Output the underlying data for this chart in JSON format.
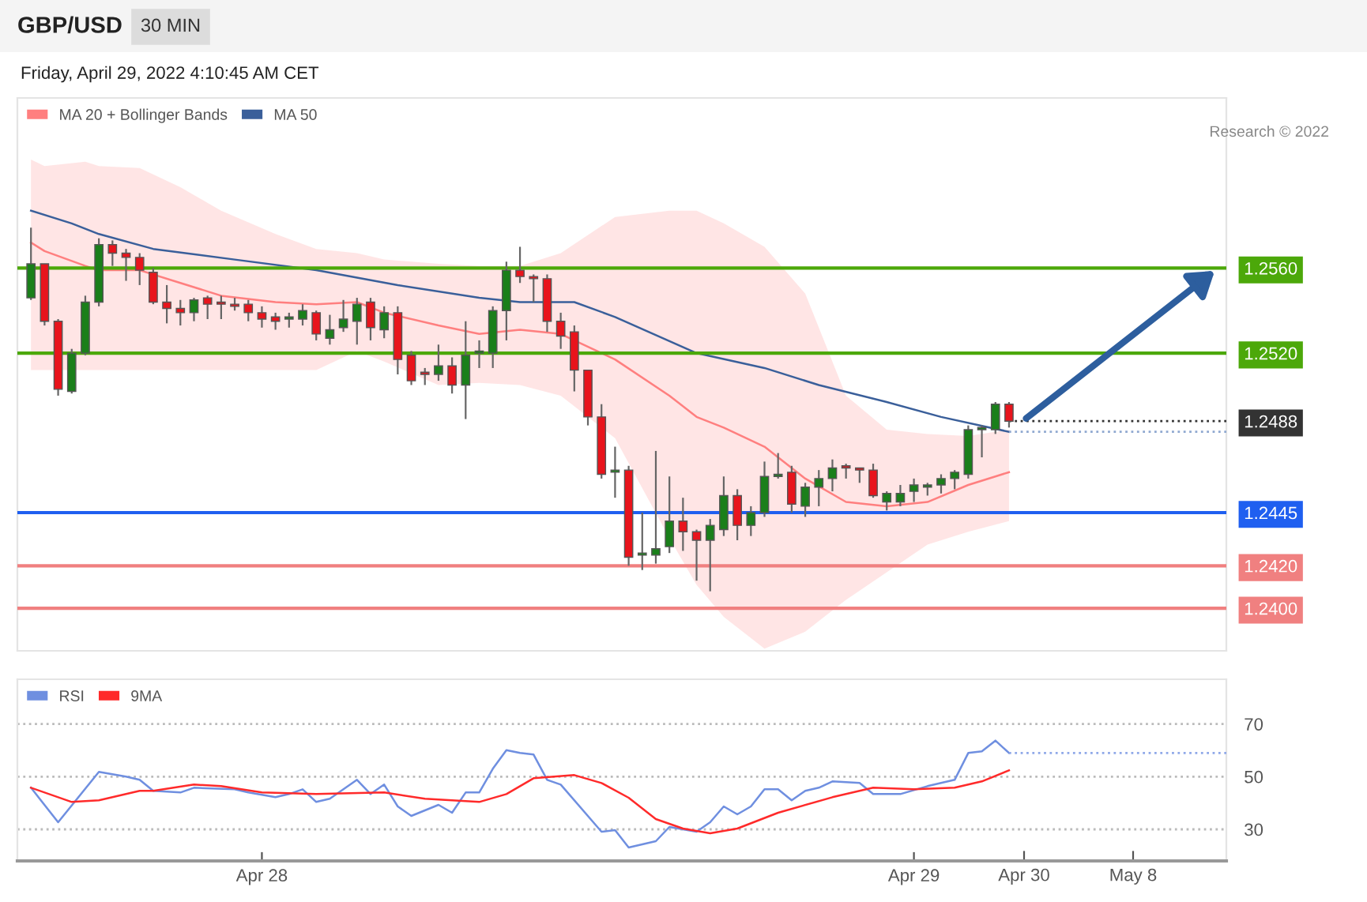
{
  "chart_data": [
    {
      "type": "candlestick",
      "title": "GBP/USD",
      "subtitle": "30 MIN",
      "annotations": [
        "Friday, April 29, 2022 4:10:45 AM CET",
        "Research © 2022"
      ],
      "x": [
        "2022-04-27T15:30",
        "2022-04-27T16:00",
        "2022-04-27T16:30",
        "2022-04-27T17:00",
        "2022-04-27T17:30",
        "2022-04-27T18:00",
        "2022-04-27T18:30",
        "2022-04-27T19:00",
        "2022-04-27T19:30",
        "2022-04-27T20:00",
        "2022-04-27T20:30",
        "2022-04-27T21:00",
        "2022-04-27T21:30",
        "2022-04-27T22:00",
        "2022-04-27T22:30",
        "2022-04-27T23:00",
        "2022-04-27T23:30",
        "2022-04-28T00:00",
        "2022-04-28T00:30",
        "2022-04-28T01:00",
        "2022-04-28T01:30",
        "2022-04-28T02:00",
        "2022-04-28T02:30",
        "2022-04-28T03:00",
        "2022-04-28T03:30",
        "2022-04-28T04:00",
        "2022-04-28T04:30",
        "2022-04-28T05:00",
        "2022-04-28T05:30",
        "2022-04-28T06:00",
        "2022-04-28T06:30",
        "2022-04-28T07:00",
        "2022-04-28T07:30",
        "2022-04-28T08:00",
        "2022-04-28T08:30",
        "2022-04-28T09:00",
        "2022-04-28T09:30",
        "2022-04-28T10:00",
        "2022-04-28T10:30",
        "2022-04-28T11:00",
        "2022-04-28T11:30",
        "2022-04-28T12:00",
        "2022-04-28T12:30",
        "2022-04-28T13:00",
        "2022-04-28T13:30",
        "2022-04-28T14:00",
        "2022-04-28T14:30",
        "2022-04-28T15:00",
        "2022-04-28T15:30",
        "2022-04-28T16:00",
        "2022-04-28T16:30",
        "2022-04-28T17:00",
        "2022-04-28T17:30",
        "2022-04-28T18:00",
        "2022-04-28T18:30",
        "2022-04-28T19:00",
        "2022-04-28T19:30",
        "2022-04-28T20:00",
        "2022-04-28T20:30",
        "2022-04-28T21:00",
        "2022-04-28T21:30",
        "2022-04-28T22:00",
        "2022-04-28T22:30",
        "2022-04-28T23:00",
        "2022-04-28T23:30",
        "2022-04-29T00:00",
        "2022-04-29T00:30",
        "2022-04-29T01:00",
        "2022-04-29T01:30",
        "2022-04-29T02:00",
        "2022-04-29T02:30",
        "2022-04-29T03:00",
        "2022-04-29T03:30"
      ],
      "ohlc": [
        [
          1.2546,
          1.2579,
          1.2545,
          1.2562
        ],
        [
          1.2562,
          1.2562,
          1.2533,
          1.2535
        ],
        [
          1.2535,
          1.2536,
          1.25,
          1.2503
        ],
        [
          1.2502,
          1.2522,
          1.2501,
          1.252
        ],
        [
          1.252,
          1.2547,
          1.2519,
          1.2544
        ],
        [
          1.2544,
          1.2574,
          1.2542,
          1.2571
        ],
        [
          1.2571,
          1.2573,
          1.2561,
          1.2567
        ],
        [
          1.2567,
          1.2569,
          1.2554,
          1.2565
        ],
        [
          1.2565,
          1.2567,
          1.2552,
          1.2559
        ],
        [
          1.2558,
          1.256,
          1.2543,
          1.2544
        ],
        [
          1.2544,
          1.2552,
          1.2534,
          1.2541
        ],
        [
          1.2541,
          1.2545,
          1.2533,
          1.2539
        ],
        [
          1.2539,
          1.2546,
          1.2535,
          1.2545
        ],
        [
          1.2546,
          1.2547,
          1.2536,
          1.2543
        ],
        [
          1.2544,
          1.2547,
          1.2536,
          1.2543
        ],
        [
          1.2543,
          1.2546,
          1.254,
          1.2542
        ],
        [
          1.2543,
          1.2545,
          1.2535,
          1.2539
        ],
        [
          1.2539,
          1.2542,
          1.2532,
          1.2536
        ],
        [
          1.2537,
          1.2539,
          1.2531,
          1.2535
        ],
        [
          1.2536,
          1.2539,
          1.2532,
          1.2537
        ],
        [
          1.2536,
          1.2543,
          1.2533,
          1.254
        ],
        [
          1.2539,
          1.254,
          1.2526,
          1.2529
        ],
        [
          1.2527,
          1.2538,
          1.2524,
          1.2531
        ],
        [
          1.2532,
          1.2545,
          1.253,
          1.2536
        ],
        [
          1.2535,
          1.2546,
          1.2524,
          1.2543
        ],
        [
          1.2544,
          1.2546,
          1.2526,
          1.2532
        ],
        [
          1.2531,
          1.2542,
          1.2527,
          1.2539
        ],
        [
          1.2539,
          1.2542,
          1.251,
          1.2517
        ],
        [
          1.2519,
          1.2521,
          1.2505,
          1.2507
        ],
        [
          1.2511,
          1.2513,
          1.2505,
          1.251
        ],
        [
          1.251,
          1.2524,
          1.2507,
          1.2514
        ],
        [
          1.2514,
          1.2518,
          1.2501,
          1.2505
        ],
        [
          1.2505,
          1.2535,
          1.2489,
          1.2519
        ],
        [
          1.252,
          1.2526,
          1.2513,
          1.2521
        ],
        [
          1.252,
          1.2542,
          1.2513,
          1.254
        ],
        [
          1.254,
          1.2563,
          1.2526,
          1.2559
        ],
        [
          1.2559,
          1.257,
          1.2553,
          1.2556
        ],
        [
          1.2556,
          1.2557,
          1.2544,
          1.2555
        ],
        [
          1.2555,
          1.2557,
          1.253,
          1.2535
        ],
        [
          1.2535,
          1.2539,
          1.2522,
          1.2528
        ],
        [
          1.253,
          1.2533,
          1.2502,
          1.2512
        ],
        [
          1.2512,
          1.2512,
          1.2486,
          1.249
        ],
        [
          1.249,
          1.2496,
          1.2461,
          1.2463
        ],
        [
          1.2464,
          1.2476,
          1.2452,
          1.2465
        ],
        [
          1.2465,
          1.2467,
          1.242,
          1.2424
        ],
        [
          1.2425,
          1.2445,
          1.2418,
          1.2426
        ],
        [
          1.2425,
          1.2474,
          1.2421,
          1.2428
        ],
        [
          1.2429,
          1.2462,
          1.2426,
          1.2441
        ],
        [
          1.2441,
          1.2452,
          1.2427,
          1.2436
        ],
        [
          1.2436,
          1.2437,
          1.2413,
          1.2432
        ],
        [
          1.2432,
          1.2442,
          1.2408,
          1.2439
        ],
        [
          1.2437,
          1.2462,
          1.2434,
          1.2453
        ],
        [
          1.2453,
          1.2456,
          1.2432,
          1.2439
        ],
        [
          1.2439,
          1.2448,
          1.2434,
          1.2445
        ],
        [
          1.2445,
          1.2469,
          1.2443,
          1.2462
        ],
        [
          1.2462,
          1.2473,
          1.2461,
          1.2463
        ],
        [
          1.2464,
          1.2467,
          1.2445,
          1.2449
        ],
        [
          1.2448,
          1.2459,
          1.2443,
          1.2457
        ],
        [
          1.2457,
          1.2465,
          1.2448,
          1.2461
        ],
        [
          1.2461,
          1.247,
          1.2455,
          1.2466
        ],
        [
          1.2467,
          1.2468,
          1.2461,
          1.2466
        ],
        [
          1.2466,
          1.2466,
          1.2459,
          1.2465
        ],
        [
          1.2465,
          1.2468,
          1.2452,
          1.2453
        ],
        [
          1.245,
          1.2455,
          1.2446,
          1.2454
        ],
        [
          1.245,
          1.2458,
          1.2448,
          1.2454
        ],
        [
          1.2455,
          1.2461,
          1.245,
          1.2458
        ],
        [
          1.2457,
          1.2459,
          1.2453,
          1.2458
        ],
        [
          1.2458,
          1.2463,
          1.2454,
          1.2461
        ],
        [
          1.2461,
          1.2465,
          1.2456,
          1.2464
        ],
        [
          1.2463,
          1.2486,
          1.2461,
          1.2484
        ],
        [
          1.2484,
          1.2486,
          1.2471,
          1.2485
        ],
        [
          1.2484,
          1.2497,
          1.2482,
          1.2496
        ],
        [
          1.2496,
          1.2497,
          1.2485,
          1.2488
        ]
      ],
      "colors": [
        "#1a7f1a",
        "#e8141c",
        "#e8141c",
        "#1a7f1a",
        "#1a7f1a",
        "#1a7f1a",
        "#e8141c",
        "#e8141c",
        "#e8141c",
        "#e8141c",
        "#e8141c",
        "#e8141c",
        "#1a7f1a",
        "#e8141c",
        "#e8141c",
        "#e8141c",
        "#e8141c",
        "#e8141c",
        "#e8141c",
        "#1a7f1a",
        "#1a7f1a",
        "#e8141c",
        "#1a7f1a",
        "#1a7f1a",
        "#1a7f1a",
        "#e8141c",
        "#1a7f1a",
        "#e8141c",
        "#e8141c",
        "#e8141c",
        "#1a7f1a",
        "#e8141c",
        "#1a7f1a",
        "#1a7f1a",
        "#1a7f1a",
        "#1a7f1a",
        "#e8141c",
        "#e8141c",
        "#e8141c",
        "#e8141c",
        "#e8141c",
        "#e8141c",
        "#e8141c",
        "#1a7f1a",
        "#e8141c",
        "#1a7f1a",
        "#1a7f1a",
        "#1a7f1a",
        "#e8141c",
        "#e8141c",
        "#1a7f1a",
        "#1a7f1a",
        "#e8141c",
        "#1a7f1a",
        "#1a7f1a",
        "#1a7f1a",
        "#e8141c",
        "#1a7f1a",
        "#1a7f1a",
        "#1a7f1a",
        "#e8141c",
        "#e8141c",
        "#e8141c",
        "#1a7f1a",
        "#1a7f1a",
        "#1a7f1a",
        "#1a7f1a",
        "#1a7f1a",
        "#1a7f1a",
        "#1a7f1a",
        "#1a7f1a",
        "#1a7f1a",
        "#e8141c"
      ],
      "series": [
        {
          "name": "MA 20 + Bollinger Bands",
          "type": "line",
          "color": "#ff7f7f",
          "x": [
            "2022-04-27T15:30",
            "2022-04-27T16:00",
            "2022-04-27T17:30",
            "2022-04-27T18:00",
            "2022-04-27T19:30",
            "2022-04-27T21:00",
            "2022-04-27T22:30",
            "2022-04-28T00:30",
            "2022-04-28T02:00",
            "2022-04-28T03:30",
            "2022-04-28T04:30",
            "2022-04-28T06:30",
            "2022-04-28T08:00",
            "2022-04-28T09:30",
            "2022-04-28T11:00",
            "2022-04-28T13:00",
            "2022-04-28T15:00",
            "2022-04-28T16:00",
            "2022-04-28T17:00",
            "2022-04-28T18:30",
            "2022-04-28T20:00",
            "2022-04-28T21:30",
            "2022-04-28T23:00",
            "2022-04-29T00:30",
            "2022-04-29T02:00",
            "2022-04-29T03:30"
          ],
          "values": [
            1.2572,
            1.2568,
            1.2561,
            1.2559,
            1.2559,
            1.2553,
            1.2547,
            1.2544,
            1.2543,
            1.2544,
            1.2539,
            1.2533,
            1.2529,
            1.2531,
            1.2529,
            1.2517,
            1.25,
            1.249,
            1.2485,
            1.2476,
            1.2461,
            1.245,
            1.2448,
            1.245,
            1.2458,
            1.2464
          ],
          "upper": [
            1.2611,
            1.2608,
            1.261,
            1.2608,
            1.2607,
            1.2598,
            1.2587,
            1.2576,
            1.2569,
            1.2567,
            1.2564,
            1.2562,
            1.2561,
            1.2561,
            1.2567,
            1.2584,
            1.2587,
            1.2587,
            1.2581,
            1.257,
            1.2548,
            1.25,
            1.2484,
            1.2482,
            1.2481,
            1.2484
          ],
          "lower": [
            1.2512,
            1.2512,
            1.2512,
            1.2512,
            1.2512,
            1.2512,
            1.2512,
            1.2512,
            1.2512,
            1.2521,
            1.2516,
            1.2505,
            1.2506,
            1.2505,
            1.25,
            1.248,
            1.2433,
            1.2411,
            1.2396,
            1.2381,
            1.2389,
            1.2404,
            1.2417,
            1.243,
            1.2436,
            1.2441
          ]
        },
        {
          "name": "MA 50",
          "type": "line",
          "color": "#3a5f9a",
          "x": [
            "2022-04-27T15:30",
            "2022-04-27T17:00",
            "2022-04-27T18:00",
            "2022-04-27T20:00",
            "2022-04-27T23:00",
            "2022-04-28T02:00",
            "2022-04-28T05:00",
            "2022-04-28T08:00",
            "2022-04-28T09:30",
            "2022-04-28T11:30",
            "2022-04-28T13:00",
            "2022-04-28T16:00",
            "2022-04-28T18:30",
            "2022-04-28T20:30",
            "2022-04-28T23:00",
            "2022-04-29T01:00",
            "2022-04-29T03:30"
          ],
          "values": [
            1.2587,
            1.2581,
            1.2576,
            1.2569,
            1.2564,
            1.2559,
            1.2552,
            1.2546,
            1.2544,
            1.2544,
            1.2537,
            1.252,
            1.2513,
            1.2505,
            1.2497,
            1.249,
            1.2483
          ]
        }
      ],
      "xlim": [
        "2022-04-27T15:00",
        "2022-04-29T11:30"
      ],
      "ylim": [
        1.238,
        1.264
      ],
      "yticks": [
        {
          "value": 1.256,
          "label": "1.2560"
        },
        {
          "value": 1.252,
          "label": "1.2520"
        },
        {
          "value": 1.2488,
          "label": "1.2488"
        },
        {
          "value": 1.2445,
          "label": "1.2445"
        },
        {
          "value": 1.242,
          "label": "1.2420"
        },
        {
          "value": 1.24,
          "label": "1.2400"
        }
      ],
      "tick_labels": "y",
      "ref_lines": [
        {
          "axis": "y",
          "value": 1.256,
          "color": "#4ca80a",
          "line_style": "solid"
        },
        {
          "axis": "y",
          "value": 1.252,
          "color": "#4ca80a",
          "line_style": "solid"
        },
        {
          "axis": "y",
          "value": 1.2488,
          "color": "#333333",
          "line_style": "dotted"
        },
        {
          "axis": "y",
          "value": 1.2483,
          "color": "#8fa8d0",
          "line_style": "dotted"
        },
        {
          "axis": "y",
          "value": 1.2445,
          "color": "#1f5ff0",
          "line_style": "solid"
        },
        {
          "axis": "y",
          "value": 1.242,
          "color": "#f08080",
          "line_style": "solid"
        },
        {
          "axis": "y",
          "value": 1.24,
          "color": "#f08080",
          "line_style": "solid"
        }
      ],
      "legend": "top left"
    },
    {
      "type": "line",
      "series": [
        {
          "name": "RSI",
          "color": "#6f8fe0",
          "x": [
            "2022-04-27T15:30",
            "2022-04-27T16:30",
            "2022-04-27T18:00",
            "2022-04-27T19:00",
            "2022-04-27T19:30",
            "2022-04-27T20:00",
            "2022-04-27T21:00",
            "2022-04-27T21:30",
            "2022-04-27T23:00",
            "2022-04-27T23:30",
            "2022-04-28T00:30",
            "2022-04-28T01:00",
            "2022-04-28T01:30",
            "2022-04-28T02:00",
            "2022-04-28T02:30",
            "2022-04-28T03:30",
            "2022-04-28T04:00",
            "2022-04-28T04:30",
            "2022-04-28T05:00",
            "2022-04-28T05:30",
            "2022-04-28T06:30",
            "2022-04-28T07:00",
            "2022-04-28T07:30",
            "2022-04-28T08:00",
            "2022-04-28T08:30",
            "2022-04-28T09:00",
            "2022-04-28T09:30",
            "2022-04-28T10:00",
            "2022-04-28T10:30",
            "2022-04-28T11:00",
            "2022-04-28T12:30",
            "2022-04-28T13:00",
            "2022-04-28T13:30",
            "2022-04-28T14:00",
            "2022-04-28T14:30",
            "2022-04-28T15:00",
            "2022-04-28T16:00",
            "2022-04-28T16:30",
            "2022-04-28T17:00",
            "2022-04-28T17:30",
            "2022-04-28T18:00",
            "2022-04-28T18:30",
            "2022-04-28T19:00",
            "2022-04-28T19:30",
            "2022-04-28T20:00",
            "2022-04-28T20:30",
            "2022-04-28T21:00",
            "2022-04-28T22:00",
            "2022-04-28T22:30",
            "2022-04-28T23:30",
            "2022-04-29T00:30",
            "2022-04-29T01:30",
            "2022-04-29T02:00",
            "2022-04-29T02:30",
            "2022-04-29T03:00",
            "2022-04-29T03:30"
          ],
          "values": [
            45.8,
            32.7,
            51.8,
            50,
            48.8,
            44.6,
            44,
            45.8,
            45.2,
            44,
            42.2,
            43.4,
            45.2,
            40.4,
            41.6,
            48.8,
            43.4,
            47,
            38.7,
            35.1,
            39.3,
            36.3,
            44,
            44,
            53,
            60.1,
            59,
            58.4,
            48.8,
            47,
            29.1,
            29.7,
            23.1,
            24.3,
            25.5,
            30.9,
            29.1,
            32.7,
            38.7,
            35.7,
            38.7,
            45.2,
            45.2,
            41,
            44.6,
            45.8,
            48.2,
            47.6,
            43.4,
            43.4,
            46.4,
            48.8,
            59,
            59.6,
            63.7,
            59
          ]
        },
        {
          "name": "9MA",
          "color": "#ff2a2a",
          "x": [
            "2022-04-27T15:30",
            "2022-04-27T17:00",
            "2022-04-27T18:00",
            "2022-04-27T19:30",
            "2022-04-27T20:00",
            "2022-04-27T21:30",
            "2022-04-27T22:30",
            "2022-04-28T00:00",
            "2022-04-28T02:00",
            "2022-04-28T04:30",
            "2022-04-28T06:00",
            "2022-04-28T08:00",
            "2022-04-28T09:00",
            "2022-04-28T10:00",
            "2022-04-28T11:30",
            "2022-04-28T12:30",
            "2022-04-28T13:30",
            "2022-04-28T14:30",
            "2022-04-28T15:30",
            "2022-04-28T16:30",
            "2022-04-28T17:30",
            "2022-04-28T19:00",
            "2022-04-28T21:00",
            "2022-04-28T22:30",
            "2022-04-29T00:00",
            "2022-04-29T01:30",
            "2022-04-29T02:30",
            "2022-04-29T03:30"
          ],
          "values": [
            45.8,
            40.4,
            41,
            44.6,
            44.6,
            47,
            46.4,
            44,
            43.4,
            44,
            41.6,
            40.4,
            43.4,
            49.4,
            50.6,
            47.6,
            42,
            33.9,
            30.3,
            28.5,
            30.3,
            36.3,
            42.2,
            45.8,
            45.2,
            45.8,
            48.2,
            52.4
          ]
        }
      ],
      "xlim": [
        "2022-04-27T15:00",
        "2022-04-29T11:30"
      ],
      "xticks": [
        {
          "value": "2022-04-28",
          "label": "Apr 28"
        },
        {
          "value": "2022-04-29",
          "label": "Apr 29"
        }
      ],
      "annotations": [
        "Apr 30",
        "May 8"
      ],
      "ylim": [
        18,
        87
      ],
      "yticks": [
        30,
        50,
        70
      ],
      "grid": "y",
      "ref_lines": [
        {
          "axis": "y",
          "value": 59,
          "color": "#8fa8e8",
          "line_style": "dotted"
        }
      ],
      "legend": "top left"
    }
  ]
}
